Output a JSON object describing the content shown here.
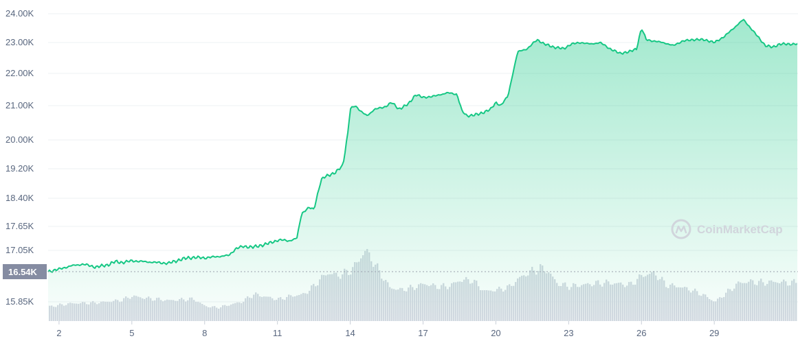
{
  "watermark": {
    "text": "CoinMarketCap"
  },
  "chart_data": {
    "type": "line",
    "title": "",
    "xlabel": "",
    "ylabel": "",
    "y_ticks": [
      "24.00K",
      "23.00K",
      "22.00K",
      "21.00K",
      "20.00K",
      "19.20K",
      "18.40K",
      "17.65K",
      "17.05K",
      "15.85K"
    ],
    "y_tick_values": [
      24000,
      23000,
      22000,
      21000,
      20000,
      19200,
      18400,
      17650,
      17050,
      15850
    ],
    "x_ticks": [
      "2",
      "5",
      "8",
      "11",
      "14",
      "17",
      "20",
      "23",
      "26",
      "29"
    ],
    "x_tick_values": [
      2,
      5,
      8,
      11,
      14,
      17,
      20,
      23,
      26,
      29
    ],
    "xlim": [
      1.55,
      32.45
    ],
    "current_price": {
      "label": "16.54K",
      "value": 16540
    },
    "colors": {
      "line": "#16c784",
      "fill_top": "#16c784",
      "volume": "#d5d9e2",
      "label_bg": "#858ca2",
      "grid": "#eef0f3",
      "axis_text": "#58667e"
    },
    "series": [
      {
        "x": [
          1.55,
          2.0,
          2.5,
          3.0,
          3.5,
          4.0,
          4.3,
          4.6,
          5.0,
          5.5,
          6.0,
          6.5,
          7.0,
          7.3,
          7.6,
          8.0,
          8.5,
          9.0,
          9.3,
          9.6,
          10.0,
          10.5,
          10.8,
          11.0,
          11.2,
          11.5,
          11.8,
          12.0,
          12.3,
          12.5,
          12.8,
          13.0,
          13.4,
          13.7,
          13.9,
          14.0,
          14.2,
          14.5,
          14.7,
          15.0,
          15.4,
          15.7,
          16.0,
          16.4,
          16.7,
          17.0,
          17.5,
          18.0,
          18.4,
          18.6,
          18.8,
          19.3,
          19.8,
          20.0,
          20.2,
          20.5,
          20.9,
          21.3,
          21.7,
          22.0,
          22.4,
          22.8,
          23.1,
          23.5,
          23.9,
          24.3,
          24.7,
          25.1,
          25.5,
          25.8,
          26.0,
          26.2,
          26.5,
          26.9,
          27.3,
          27.7,
          28.1,
          28.6,
          29.0,
          29.4,
          29.8,
          30.2,
          30.5,
          30.8,
          31.1,
          31.4,
          31.7,
          32.0,
          32.45
        ],
        "values": [
          16540,
          16600,
          16680,
          16720,
          16650,
          16700,
          16780,
          16760,
          16800,
          16780,
          16760,
          16740,
          16830,
          16870,
          16880,
          16870,
          16900,
          16930,
          17100,
          17150,
          17130,
          17200,
          17260,
          17300,
          17310,
          17290,
          17350,
          18000,
          18150,
          18100,
          18900,
          19000,
          19100,
          19300,
          20200,
          20900,
          21000,
          20800,
          20700,
          20900,
          20950,
          21100,
          20900,
          21050,
          21350,
          21250,
          21300,
          21400,
          21350,
          20850,
          20700,
          20750,
          20900,
          21100,
          21000,
          21300,
          22700,
          22800,
          23100,
          22950,
          22850,
          22800,
          22950,
          23000,
          22950,
          23000,
          22800,
          22650,
          22700,
          22800,
          23500,
          23100,
          23050,
          23000,
          22900,
          23050,
          23100,
          23100,
          23000,
          23200,
          23500,
          23800,
          23500,
          23200,
          22900,
          22850,
          22950,
          22950,
          22950
        ]
      }
    ],
    "volume": {
      "x": [
        1.55,
        2.5,
        3.5,
        4.5,
        5.0,
        5.5,
        6.5,
        7.5,
        8.0,
        8.5,
        9.5,
        10.0,
        11.0,
        11.5,
        12.0,
        12.3,
        12.6,
        13.0,
        13.5,
        14.0,
        14.3,
        14.6,
        14.9,
        15.2,
        15.6,
        16.0,
        16.6,
        17.0,
        17.5,
        18.0,
        18.5,
        19.0,
        19.5,
        20.0,
        20.5,
        21.0,
        21.5,
        21.8,
        22.1,
        22.5,
        23.0,
        23.5,
        24.0,
        24.5,
        25.0,
        25.5,
        26.0,
        26.5,
        27.0,
        27.5,
        28.0,
        28.5,
        29.0,
        29.5,
        30.0,
        30.5,
        31.0,
        31.5,
        32.0,
        32.45
      ],
      "values": [
        0.3,
        0.37,
        0.38,
        0.43,
        0.52,
        0.48,
        0.43,
        0.46,
        0.31,
        0.28,
        0.4,
        0.56,
        0.45,
        0.52,
        0.55,
        0.65,
        0.8,
        1.0,
        0.95,
        1.05,
        1.25,
        1.48,
        1.25,
        1.0,
        0.7,
        0.65,
        0.7,
        0.78,
        0.72,
        0.72,
        0.85,
        0.85,
        0.62,
        0.65,
        0.7,
        0.92,
        1.05,
        1.1,
        1.05,
        0.78,
        0.72,
        0.75,
        0.78,
        0.8,
        0.78,
        0.75,
        0.95,
        1.0,
        0.75,
        0.72,
        0.65,
        0.55,
        0.4,
        0.6,
        0.8,
        0.82,
        0.8,
        0.82,
        0.8,
        0.8
      ]
    }
  }
}
